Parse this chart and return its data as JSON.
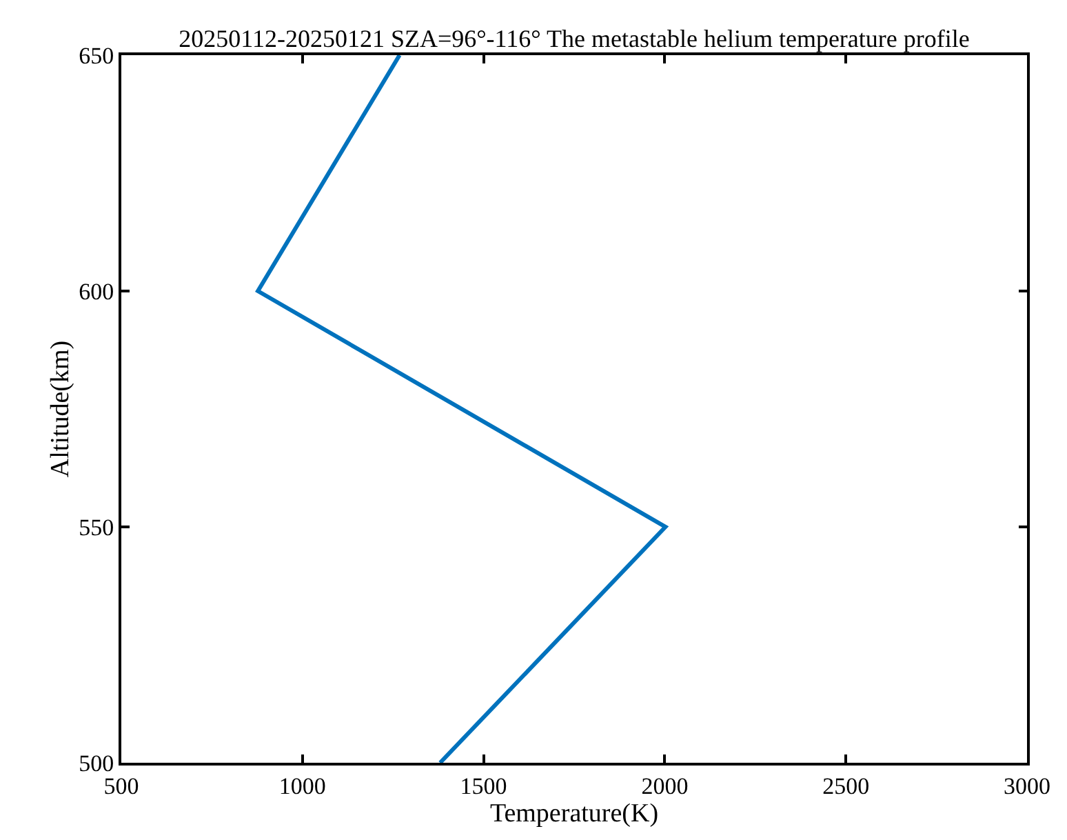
{
  "chart_data": {
    "type": "line",
    "title": "20250112-20250121 SZA=96°-116° The metastable helium temperature profile",
    "xlabel": "Temperature(K)",
    "ylabel": "Altitude(km)",
    "series": [
      {
        "color": "#0072bd",
        "x": [
          1380,
          2002,
          877,
          1268
        ],
        "values": [
          500,
          550,
          600,
          650
        ]
      }
    ],
    "xlim": [
      500,
      3000
    ],
    "xticks": [
      500,
      1000,
      1500,
      2000,
      2500,
      3000
    ],
    "ylim": [
      500,
      650
    ],
    "yticks": [
      500,
      550,
      600,
      650
    ],
    "grid": false,
    "marker": "none",
    "line_style": "solid"
  }
}
